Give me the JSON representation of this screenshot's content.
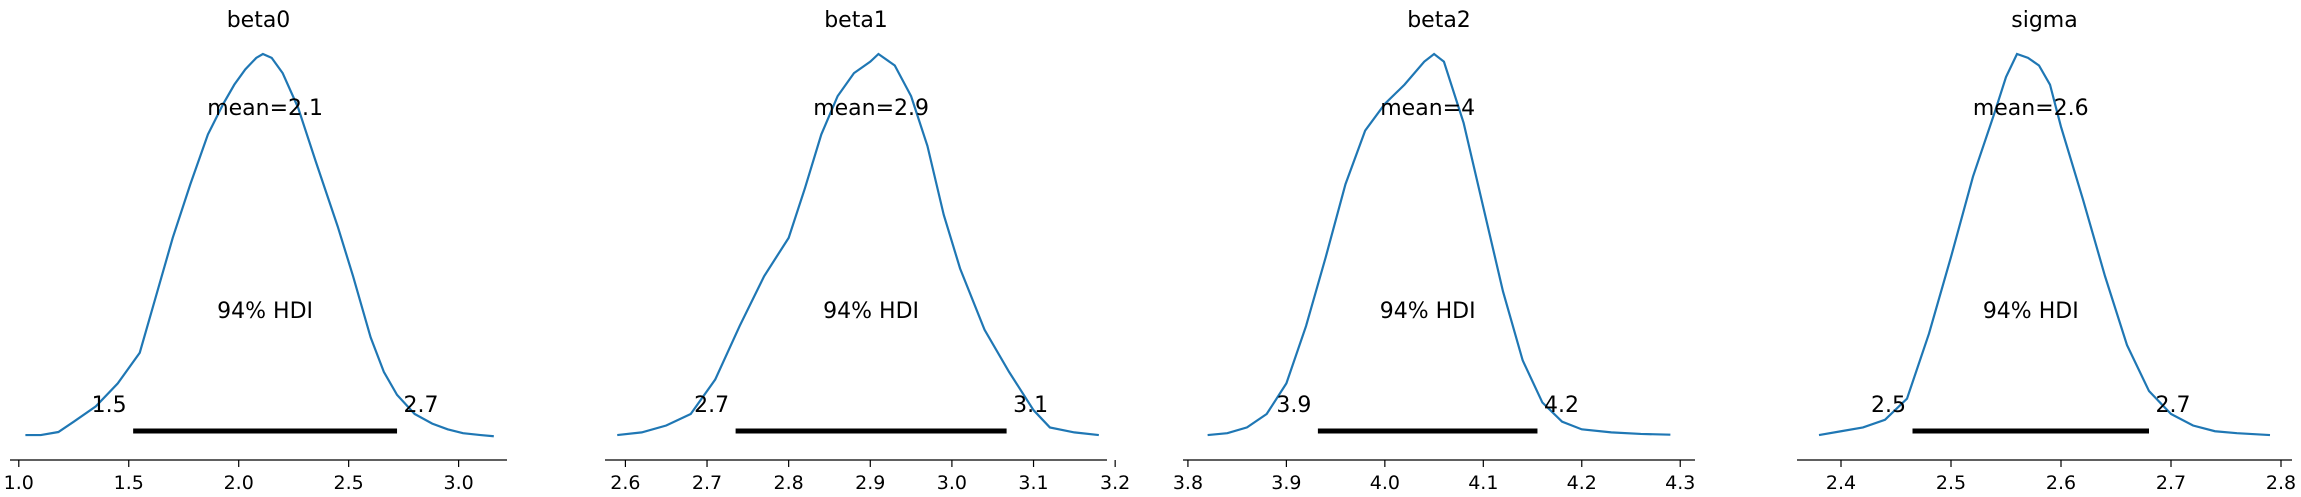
{
  "figure": {
    "curve_color": "#1f77b4",
    "hdi_bar_color": "#000000",
    "axis_color": "#000000"
  },
  "chart_data": [
    {
      "type": "line",
      "title": "beta0",
      "mean_label": "mean=2.1",
      "hdi_label": "94% HDI",
      "hdi_low": 1.52,
      "hdi_high": 2.72,
      "hdi_low_label": "1.5",
      "hdi_high_label": "2.7",
      "xlim": [
        0.96,
        3.22
      ],
      "xticks": [
        1.0,
        1.5,
        2.0,
        2.5,
        3.0
      ],
      "xtick_labels": [
        "1.0",
        "1.5",
        "2.0",
        "2.5",
        "3.0"
      ],
      "x": [
        1.03,
        1.1,
        1.18,
        1.25,
        1.35,
        1.45,
        1.55,
        1.62,
        1.7,
        1.78,
        1.86,
        1.93,
        1.98,
        2.03,
        2.08,
        2.11,
        2.15,
        2.2,
        2.27,
        2.35,
        2.45,
        2.52,
        2.6,
        2.66,
        2.72,
        2.8,
        2.88,
        2.95,
        3.02,
        3.1,
        3.16
      ],
      "y": [
        0.005,
        0.005,
        0.013,
        0.04,
        0.08,
        0.14,
        0.22,
        0.36,
        0.52,
        0.66,
        0.79,
        0.87,
        0.92,
        0.96,
        0.99,
        1.0,
        0.99,
        0.95,
        0.86,
        0.72,
        0.55,
        0.42,
        0.26,
        0.17,
        0.11,
        0.06,
        0.035,
        0.02,
        0.01,
        0.005,
        0.002
      ]
    },
    {
      "type": "line",
      "title": "beta1",
      "mean_label": "mean=2.9",
      "hdi_label": "94% HDI",
      "hdi_low": 2.735,
      "hdi_high": 3.067,
      "hdi_low_label": "2.7",
      "hdi_high_label": "3.1",
      "xlim": [
        2.575,
        3.19
      ],
      "xticks": [
        2.6,
        2.7,
        2.8,
        2.9,
        3.0,
        3.1,
        3.2
      ],
      "xtick_labels": [
        "2.6",
        "2.7",
        "2.8",
        "2.9",
        "3.0",
        "3.1",
        "3.2"
      ],
      "x": [
        2.59,
        2.62,
        2.65,
        2.68,
        2.71,
        2.74,
        2.77,
        2.8,
        2.82,
        2.84,
        2.86,
        2.88,
        2.9,
        2.91,
        2.93,
        2.95,
        2.97,
        2.99,
        3.01,
        3.04,
        3.07,
        3.1,
        3.12,
        3.15,
        3.18
      ],
      "y": [
        0.005,
        0.012,
        0.03,
        0.06,
        0.15,
        0.29,
        0.42,
        0.52,
        0.65,
        0.79,
        0.89,
        0.95,
        0.98,
        1.0,
        0.97,
        0.89,
        0.76,
        0.58,
        0.44,
        0.28,
        0.17,
        0.07,
        0.025,
        0.012,
        0.005
      ]
    },
    {
      "type": "line",
      "title": "beta2",
      "mean_label": "mean=4",
      "hdi_label": "94% HDI",
      "hdi_low": 3.932,
      "hdi_high": 4.155,
      "hdi_low_label": "3.9",
      "hdi_high_label": "4.2",
      "xlim": [
        3.795,
        4.315
      ],
      "xticks": [
        3.8,
        3.9,
        4.0,
        4.1,
        4.2,
        4.3
      ],
      "xtick_labels": [
        "3.8",
        "3.9",
        "4.0",
        "4.1",
        "4.2",
        "4.3"
      ],
      "x": [
        3.82,
        3.84,
        3.86,
        3.88,
        3.9,
        3.92,
        3.94,
        3.96,
        3.98,
        4.0,
        4.02,
        4.04,
        4.05,
        4.06,
        4.08,
        4.1,
        4.12,
        4.14,
        4.16,
        4.18,
        4.2,
        4.23,
        4.26,
        4.29
      ],
      "y": [
        0.005,
        0.01,
        0.025,
        0.06,
        0.14,
        0.29,
        0.47,
        0.66,
        0.8,
        0.87,
        0.92,
        0.98,
        1.0,
        0.98,
        0.82,
        0.6,
        0.38,
        0.2,
        0.09,
        0.04,
        0.02,
        0.012,
        0.008,
        0.006
      ]
    },
    {
      "type": "line",
      "title": "sigma",
      "mean_label": "mean=2.6",
      "hdi_label": "94% HDI",
      "hdi_low": 2.465,
      "hdi_high": 2.68,
      "hdi_low_label": "2.5",
      "hdi_high_label": "2.7",
      "xlim": [
        2.36,
        2.81
      ],
      "xticks": [
        2.4,
        2.5,
        2.6,
        2.7,
        2.8
      ],
      "xtick_labels": [
        "2.4",
        "2.5",
        "2.6",
        "2.7",
        "2.8"
      ],
      "x": [
        2.38,
        2.4,
        2.42,
        2.44,
        2.46,
        2.48,
        2.5,
        2.52,
        2.54,
        2.55,
        2.56,
        2.57,
        2.58,
        2.59,
        2.6,
        2.62,
        2.64,
        2.66,
        2.68,
        2.7,
        2.72,
        2.74,
        2.76,
        2.79
      ],
      "y": [
        0.005,
        0.015,
        0.025,
        0.045,
        0.1,
        0.27,
        0.47,
        0.68,
        0.85,
        0.94,
        1.0,
        0.99,
        0.97,
        0.92,
        0.81,
        0.62,
        0.42,
        0.24,
        0.12,
        0.06,
        0.03,
        0.015,
        0.01,
        0.005
      ]
    }
  ]
}
